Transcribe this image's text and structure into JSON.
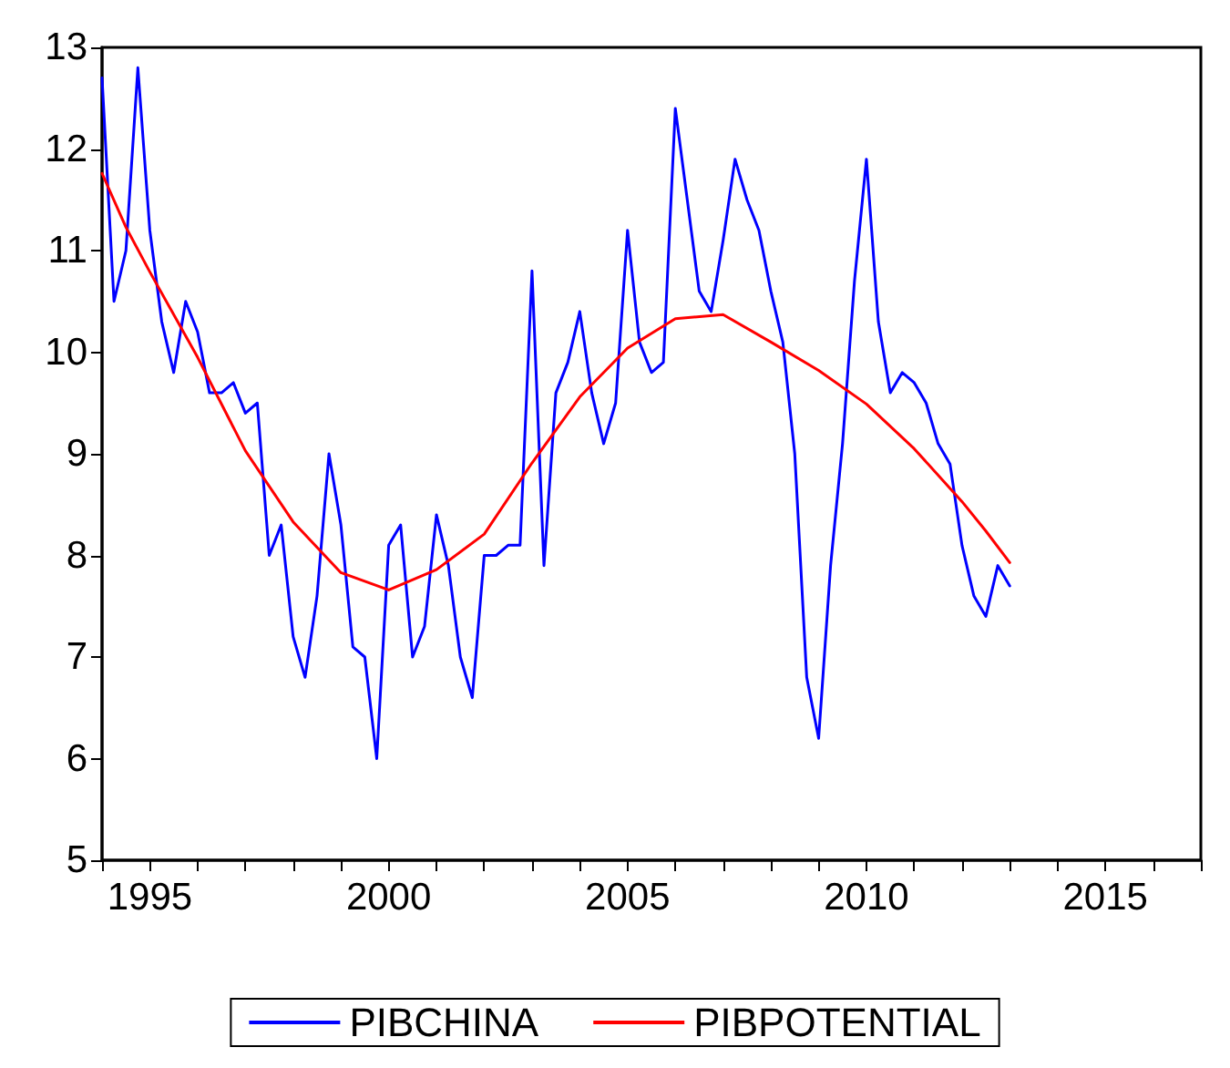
{
  "chart_data": {
    "type": "line",
    "legend": "bottom",
    "grid": false,
    "marker": "none",
    "line_style": "solid",
    "xlim": [
      1994,
      2017
    ],
    "xticks": [
      {
        "value": 1994,
        "label": null
      },
      1995,
      {
        "value": 1996,
        "label": null
      },
      {
        "value": 1997,
        "label": null
      },
      {
        "value": 1998,
        "label": null
      },
      {
        "value": 1999,
        "label": null
      },
      2000,
      {
        "value": 2001,
        "label": null
      },
      {
        "value": 2002,
        "label": null
      },
      {
        "value": 2003,
        "label": null
      },
      {
        "value": 2004,
        "label": null
      },
      2005,
      {
        "value": 2006,
        "label": null
      },
      {
        "value": 2007,
        "label": null
      },
      {
        "value": 2008,
        "label": null
      },
      {
        "value": 2009,
        "label": null
      },
      2010,
      {
        "value": 2011,
        "label": null
      },
      {
        "value": 2012,
        "label": null
      },
      {
        "value": 2013,
        "label": null
      },
      {
        "value": 2014,
        "label": null
      },
      2015,
      {
        "value": 2016,
        "label": null
      },
      {
        "value": 2017,
        "label": null
      }
    ],
    "ylim": [
      5,
      13
    ],
    "yticks": [
      5,
      6,
      7,
      8,
      9,
      10,
      11,
      12,
      13
    ],
    "series": [
      {
        "name": "PIBCHINA",
        "color": "#0000ff",
        "x": [
          1994,
          1994.25,
          1994.5,
          1994.75,
          1995,
          1995.25,
          1995.5,
          1995.75,
          1996,
          1996.25,
          1996.5,
          1996.75,
          1997,
          1997.25,
          1997.5,
          1997.75,
          1998,
          1998.25,
          1998.5,
          1998.75,
          1999,
          1999.25,
          1999.5,
          1999.75,
          2000,
          2000.25,
          2000.5,
          2000.75,
          2001,
          2001.25,
          2001.5,
          2001.75,
          2002,
          2002.25,
          2002.5,
          2002.75,
          2003,
          2003.25,
          2003.5,
          2003.75,
          2004,
          2004.25,
          2004.5,
          2004.75,
          2005,
          2005.25,
          2005.5,
          2005.75,
          2006,
          2006.25,
          2006.5,
          2006.75,
          2007,
          2007.25,
          2007.5,
          2007.75,
          2008,
          2008.25,
          2008.5,
          2008.75,
          2009,
          2009.25,
          2009.5,
          2009.75,
          2010,
          2010.25,
          2010.5,
          2010.75,
          2011,
          2011.25,
          2011.5,
          2011.75,
          2012,
          2012.25,
          2012.5,
          2012.75,
          2013
        ],
        "values": [
          12.7,
          10.5,
          11.0,
          12.8,
          11.2,
          10.3,
          9.8,
          10.5,
          10.2,
          9.6,
          9.6,
          9.7,
          9.4,
          9.5,
          8.0,
          8.3,
          7.2,
          6.8,
          7.6,
          9.0,
          8.3,
          7.1,
          7.0,
          6.0,
          8.1,
          8.3,
          7.0,
          7.3,
          8.4,
          7.9,
          7.0,
          6.6,
          8.0,
          8.0,
          8.1,
          8.1,
          10.8,
          7.9,
          9.6,
          9.9,
          10.4,
          9.6,
          9.1,
          9.5,
          11.2,
          10.1,
          9.8,
          9.9,
          12.4,
          11.5,
          10.6,
          10.4,
          11.1,
          11.9,
          11.5,
          11.2,
          10.6,
          10.1,
          9.0,
          6.8,
          6.2,
          7.9,
          9.1,
          10.7,
          11.9,
          10.3,
          9.6,
          9.8,
          9.7,
          9.5,
          9.1,
          8.9,
          8.1,
          7.6,
          7.4,
          7.9,
          7.7
        ]
      },
      {
        "name": "PIBPOTENTIAL",
        "color": "#ff0000",
        "x": [
          1994,
          1994.5,
          1995,
          1996,
          1997,
          1998,
          1999,
          2000,
          2001,
          2002,
          2003,
          2004,
          2005,
          2006,
          2007,
          2008,
          2009,
          2010,
          2011,
          2012,
          2012.5,
          2013
        ],
        "values": [
          11.76,
          11.23,
          10.79,
          9.95,
          9.03,
          8.33,
          7.83,
          7.66,
          7.86,
          8.21,
          8.91,
          9.56,
          10.04,
          10.33,
          10.37,
          10.1,
          9.82,
          9.49,
          9.05,
          8.53,
          8.24,
          7.93
        ]
      }
    ]
  }
}
